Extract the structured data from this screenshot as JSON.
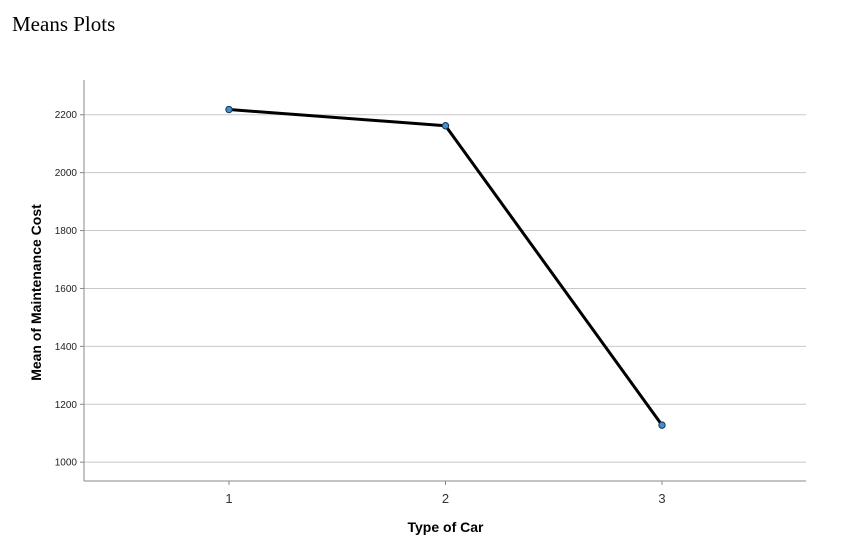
{
  "page": {
    "heading": "Means Plots"
  },
  "chart_data": {
    "type": "line",
    "x": [
      1,
      2,
      3
    ],
    "categories": [
      "1",
      "2",
      "3"
    ],
    "series": [
      {
        "values": [
          2218,
          2162,
          1128
        ]
      }
    ],
    "xlabel": "Type of Car",
    "ylabel": "Mean of Maintenance Cost",
    "yticks": [
      1000,
      1200,
      1400,
      1600,
      1800,
      2000,
      2200
    ],
    "ylim": [
      935,
      2320
    ],
    "grid": true,
    "colors": {
      "line": "#000000",
      "marker": "#3d8fd6",
      "grid": "#c8c8c8",
      "axis": "#888888"
    }
  }
}
